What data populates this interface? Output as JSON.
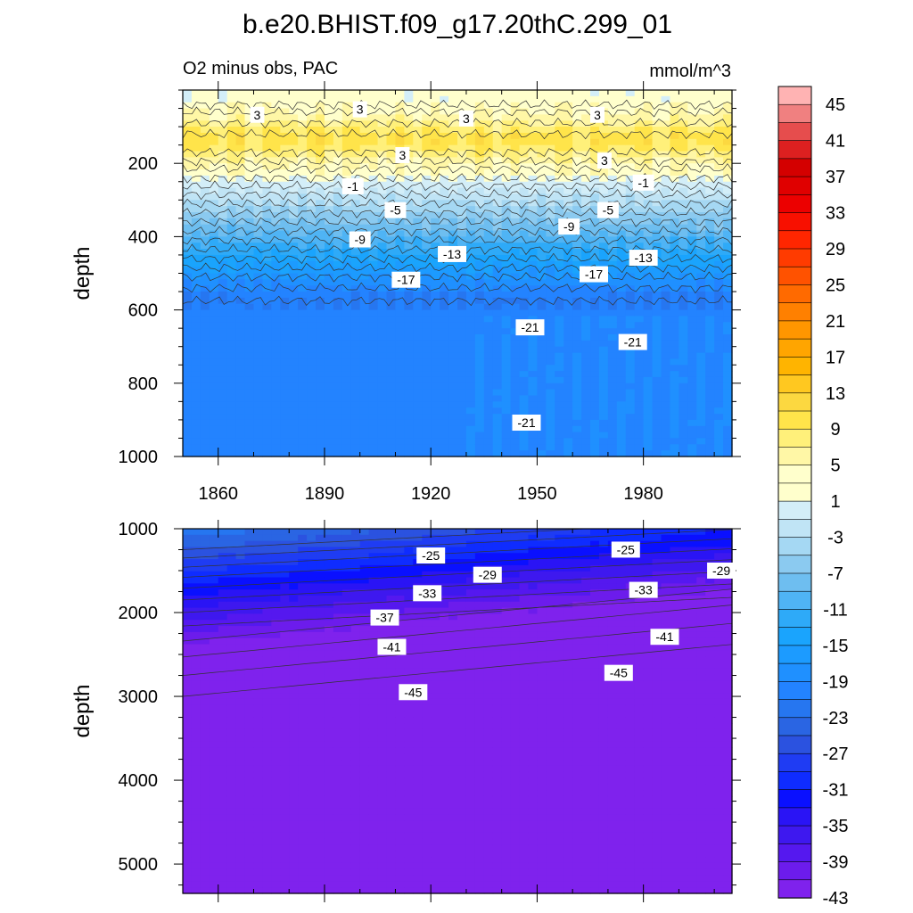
{
  "chart_data": {
    "type": "heatmap",
    "title": "b.e20.BHIST.f09_g17.20thC.299_01",
    "subtitle_left": "O2 minus obs, PAC",
    "units": "mmol/m^3",
    "panels": [
      {
        "name": "upper",
        "ylabel": "depth",
        "xlim": [
          1850,
          2005
        ],
        "ylim": [
          1000,
          0
        ],
        "xticks": [
          1860,
          1890,
          1920,
          1950,
          1980
        ],
        "yticks": [
          200,
          400,
          600,
          800,
          1000
        ],
        "contour_labels": [
          {
            "text": "3",
            "x": 1871,
            "y": 70
          },
          {
            "text": "3",
            "x": 1900,
            "y": 55
          },
          {
            "text": "3",
            "x": 1930,
            "y": 80
          },
          {
            "text": "3",
            "x": 1967,
            "y": 70
          },
          {
            "text": "3",
            "x": 1912,
            "y": 180
          },
          {
            "text": "3",
            "x": 1969,
            "y": 195
          },
          {
            "text": "-1",
            "x": 1898,
            "y": 265
          },
          {
            "text": "-1",
            "x": 1980,
            "y": 255
          },
          {
            "text": "-5",
            "x": 1910,
            "y": 330
          },
          {
            "text": "-5",
            "x": 1970,
            "y": 330
          },
          {
            "text": "-9",
            "x": 1900,
            "y": 410
          },
          {
            "text": "-9",
            "x": 1959,
            "y": 375
          },
          {
            "text": "-13",
            "x": 1926,
            "y": 450
          },
          {
            "text": "-13",
            "x": 1980,
            "y": 460
          },
          {
            "text": "-17",
            "x": 1913,
            "y": 520
          },
          {
            "text": "-17",
            "x": 1966,
            "y": 505
          },
          {
            "text": "-21",
            "x": 1948,
            "y": 650
          },
          {
            "text": "-21",
            "x": 1977,
            "y": 690
          },
          {
            "text": "-21",
            "x": 1947,
            "y": 910
          }
        ]
      },
      {
        "name": "lower",
        "ylabel": "depth",
        "xlim": [
          1850,
          2005
        ],
        "ylim": [
          5350,
          1000
        ],
        "yticks": [
          1000,
          2000,
          3000,
          4000,
          5000
        ],
        "contour_labels": [
          {
            "text": "-25",
            "x": 1920,
            "y": 1330
          },
          {
            "text": "-25",
            "x": 1975,
            "y": 1260
          },
          {
            "text": "-29",
            "x": 1936,
            "y": 1560
          },
          {
            "text": "-29",
            "x": 2002,
            "y": 1510
          },
          {
            "text": "-33",
            "x": 1919,
            "y": 1780
          },
          {
            "text": "-33",
            "x": 1980,
            "y": 1740
          },
          {
            "text": "-37",
            "x": 1907,
            "y": 2070
          },
          {
            "text": "-41",
            "x": 1909,
            "y": 2420
          },
          {
            "text": "-41",
            "x": 1986,
            "y": 2300
          },
          {
            "text": "-45",
            "x": 1915,
            "y": 2960
          },
          {
            "text": "-45",
            "x": 1973,
            "y": 2730
          }
        ]
      }
    ],
    "colorbar": {
      "tick_labels": [
        "45",
        "41",
        "37",
        "33",
        "29",
        "25",
        "21",
        "17",
        "13",
        "9",
        "5",
        "1",
        "-3",
        "-7",
        "-11",
        "-15",
        "-19",
        "-23",
        "-27",
        "-31",
        "-35",
        "-39",
        "-43"
      ],
      "colors": [
        "#ffb3b3",
        "#f08080",
        "#e64d4d",
        "#dd2020",
        "#d40000",
        "#e00000",
        "#ec0000",
        "#f81000",
        "#ff2600",
        "#ff3b00",
        "#ff5200",
        "#ff6a00",
        "#ff8000",
        "#ff9600",
        "#ffa500",
        "#ffb400",
        "#ffc820",
        "#fcd840",
        "#ffe44a",
        "#fff07a",
        "#fff7a6",
        "#ffffcc",
        "#ffffcc",
        "#d3eef8",
        "#c0e4f5",
        "#a5d8f3",
        "#8bcaf0",
        "#6ebef0",
        "#4fb4f5",
        "#2eaaf8",
        "#1aa4fd",
        "#1c9bff",
        "#1f90ff",
        "#2383ff",
        "#2676f0",
        "#2a65e3",
        "#2b52e0",
        "#1f3cf3",
        "#0f2cff",
        "#0a10ff",
        "#2a14f5",
        "#3e18ef",
        "#5518ef",
        "#6c1cec",
        "#7f22ed"
      ],
      "range": [
        -45,
        47
      ]
    }
  }
}
